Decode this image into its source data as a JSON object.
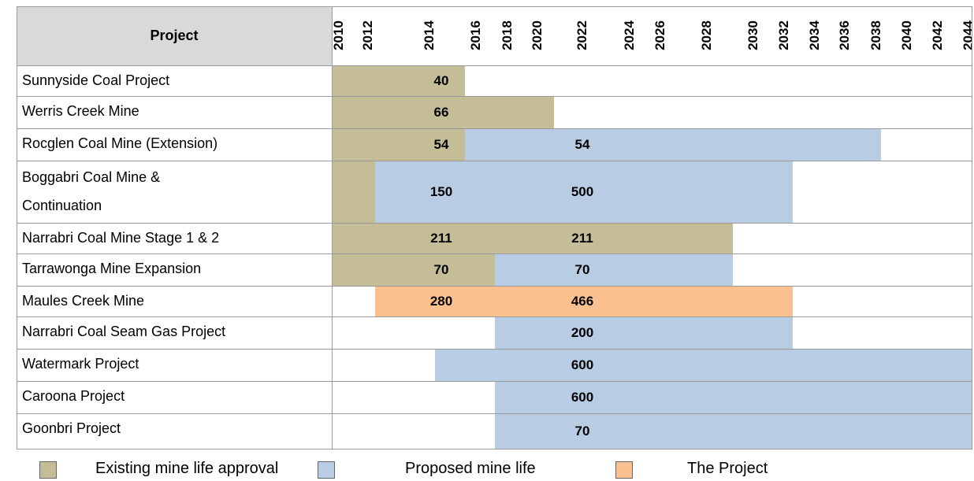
{
  "header": {
    "project": "Project",
    "years": [
      "2010",
      "2012",
      "2014",
      "2016",
      "2018",
      "2020",
      "2022",
      "2024",
      "2026",
      "2028",
      "2030",
      "2032",
      "2034",
      "2036",
      "2038",
      "2040",
      "2042",
      "2044"
    ]
  },
  "rows": [
    {
      "project": "Sunnyside Coal Project",
      "bars": [
        {
          "color": "#c4bd97",
          "labels": [
            "40"
          ]
        }
      ]
    },
    {
      "project": "Werris Creek Mine",
      "bars": [
        {
          "color": "#c4bd97",
          "labels": [
            "66"
          ]
        }
      ]
    },
    {
      "project": "Rocglen Coal Mine (Extension)",
      "bars": [
        {
          "color": "#c4bd97",
          "labels": [
            "54"
          ]
        },
        {
          "color": "#b8cce4",
          "labels": [
            "54"
          ]
        }
      ]
    },
    {
      "project": "Boggabri Coal Mine & Continuation",
      "bars": [
        {
          "color": "#c4bd97",
          "labels": []
        },
        {
          "color": "#b8cce4",
          "labels": [
            "150",
            "500"
          ]
        }
      ]
    },
    {
      "project": "Narrabri Coal Mine Stage 1 & 2",
      "bars": [
        {
          "color": "#c4bd97",
          "labels": [
            "211",
            "211"
          ]
        }
      ]
    },
    {
      "project": "Tarrawonga Mine Expansion",
      "bars": [
        {
          "color": "#c4bd97",
          "labels": [
            "70"
          ]
        },
        {
          "color": "#b8cce4",
          "labels": [
            "70"
          ]
        }
      ]
    },
    {
      "project": "Maules Creek Mine",
      "bars": [
        {
          "color": "#fac090",
          "labels": [
            "280",
            "466"
          ]
        }
      ]
    },
    {
      "project": "Narrabri Coal Seam Gas Project",
      "bars": [
        {
          "color": "#b8cce4",
          "labels": [
            "200"
          ]
        }
      ]
    },
    {
      "project": "Watermark Project",
      "bars": [
        {
          "color": "#b8cce4",
          "labels": [
            "600"
          ]
        }
      ]
    },
    {
      "project": "Caroona Project",
      "bars": [
        {
          "color": "#b8cce4",
          "labels": [
            "600"
          ]
        }
      ]
    },
    {
      "project": "Goonbri Project",
      "bars": [
        {
          "color": "#b8cce4",
          "labels": [
            "70"
          ]
        }
      ]
    }
  ],
  "legend": [
    {
      "label": "Existing mine life approval",
      "color": "#c4bd97"
    },
    {
      "label": "Proposed mine life",
      "color": "#b8cce4"
    },
    {
      "label": "The Project",
      "color": "#fac090"
    }
  ]
}
